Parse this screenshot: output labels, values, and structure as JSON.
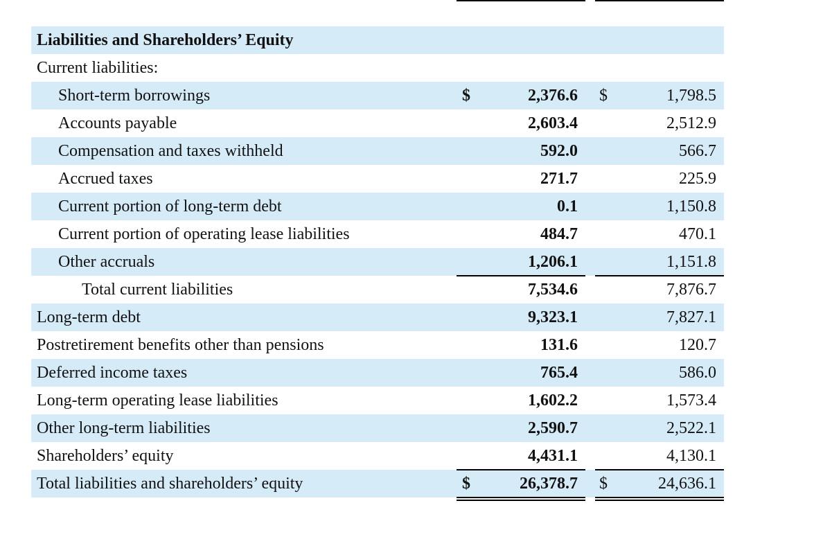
{
  "section_title": "Liabilities and Shareholders’ Equity",
  "current_liabilities_header": "Current liabilities:",
  "currency_symbol": "$",
  "rows": {
    "short_term_borrowings": {
      "label": "Short-term borrowings",
      "current": "2,376.6",
      "prior": "1,798.5"
    },
    "accounts_payable": {
      "label": "Accounts payable",
      "current": "2,603.4",
      "prior": "2,512.9"
    },
    "compensation_taxes": {
      "label": "Compensation and taxes withheld",
      "current": "592.0",
      "prior": "566.7"
    },
    "accrued_taxes": {
      "label": "Accrued taxes",
      "current": "271.7",
      "prior": "225.9"
    },
    "current_ltd": {
      "label": "Current portion of long-term debt",
      "current": "0.1",
      "prior": "1,150.8"
    },
    "current_lease": {
      "label": "Current portion of operating lease liabilities",
      "current": "484.7",
      "prior": "470.1"
    },
    "other_accruals": {
      "label": "Other accruals",
      "current": "1,206.1",
      "prior": "1,151.8"
    },
    "total_current": {
      "label": "Total current liabilities",
      "current": "7,534.6",
      "prior": "7,876.7"
    },
    "long_term_debt": {
      "label": "Long-term debt",
      "current": "9,323.1",
      "prior": "7,827.1"
    },
    "postretirement": {
      "label": "Postretirement benefits other than pensions",
      "current": "131.6",
      "prior": "120.7"
    },
    "deferred_taxes": {
      "label": "Deferred income taxes",
      "current": "765.4",
      "prior": "586.0"
    },
    "lt_lease": {
      "label": "Long-term operating lease liabilities",
      "current": "1,602.2",
      "prior": "1,573.4"
    },
    "other_lt": {
      "label": "Other long-term liabilities",
      "current": "2,590.7",
      "prior": "2,522.1"
    },
    "equity": {
      "label": "Shareholders’ equity",
      "current": "4,431.1",
      "prior": "4,130.1"
    },
    "total": {
      "label": "Total liabilities and shareholders’ equity",
      "current": "26,378.7",
      "prior": "24,636.1"
    }
  },
  "colors": {
    "shade": "#d6ebf8",
    "text": "#111111"
  }
}
